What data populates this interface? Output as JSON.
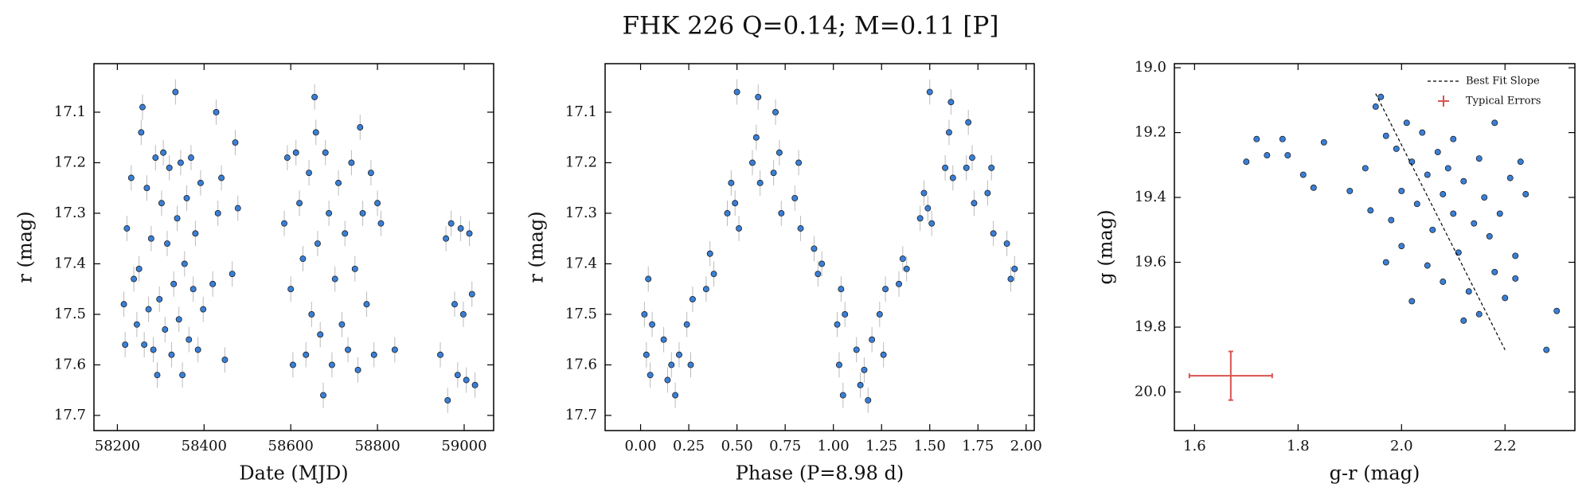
{
  "title": "FHK 226  Q=0.14; M=0.11 [P]",
  "chart_data": [
    {
      "type": "scatter",
      "xlabel": "Date (MJD)",
      "ylabel": "r (mag)",
      "color": "#3a7fd5",
      "yerr": 0.025,
      "xlim": [
        58146,
        59068
      ],
      "ylim": [
        17.73,
        17.004
      ],
      "xticks": [
        58200,
        58400,
        58600,
        58800,
        59000
      ],
      "yticks": [
        17.1,
        17.2,
        17.3,
        17.4,
        17.5,
        17.6,
        17.7
      ],
      "x": [
        58215,
        58218,
        58222,
        58232,
        58238,
        58245,
        58250,
        58255,
        58258,
        58262,
        58268,
        58272,
        58278,
        58283,
        58288,
        58292,
        58297,
        58302,
        58306,
        58310,
        58315,
        58320,
        58325,
        58330,
        58334,
        58338,
        58342,
        58346,
        58350,
        58355,
        58360,
        58365,
        58370,
        58375,
        58380,
        58386,
        58392,
        58398,
        58420,
        58428,
        58432,
        58440,
        58448,
        58465,
        58472,
        58478,
        58585,
        58592,
        58600,
        58605,
        58612,
        58620,
        58628,
        58635,
        58642,
        58648,
        58655,
        58658,
        58662,
        58668,
        58675,
        58680,
        58688,
        58695,
        58702,
        58710,
        58718,
        58725,
        58732,
        58740,
        58748,
        58755,
        58760,
        58766,
        58775,
        58785,
        58792,
        58800,
        58808,
        58840,
        58945,
        58958,
        58962,
        58970,
        58978,
        58985,
        58992,
        58998,
        59005,
        59012,
        59018,
        59025
      ],
      "values": [
        17.48,
        17.56,
        17.33,
        17.23,
        17.43,
        17.52,
        17.41,
        17.14,
        17.09,
        17.56,
        17.25,
        17.49,
        17.35,
        17.57,
        17.19,
        17.62,
        17.47,
        17.28,
        17.18,
        17.53,
        17.36,
        17.21,
        17.58,
        17.44,
        17.06,
        17.31,
        17.51,
        17.2,
        17.62,
        17.4,
        17.27,
        17.55,
        17.19,
        17.45,
        17.34,
        17.57,
        17.24,
        17.49,
        17.44,
        17.1,
        17.3,
        17.23,
        17.59,
        17.42,
        17.16,
        17.29,
        17.32,
        17.19,
        17.45,
        17.6,
        17.18,
        17.28,
        17.39,
        17.58,
        17.22,
        17.5,
        17.07,
        17.14,
        17.36,
        17.54,
        17.66,
        17.18,
        17.3,
        17.6,
        17.43,
        17.24,
        17.52,
        17.34,
        17.57,
        17.2,
        17.41,
        17.61,
        17.13,
        17.3,
        17.48,
        17.22,
        17.58,
        17.28,
        17.32,
        17.57,
        17.58,
        17.35,
        17.67,
        17.32,
        17.48,
        17.62,
        17.33,
        17.5,
        17.63,
        17.34,
        17.46,
        17.64
      ]
    },
    {
      "type": "scatter",
      "xlabel": "Phase (P=8.98 d)",
      "ylabel": "r (mag)",
      "color": "#3a7fd5",
      "yerr": 0.025,
      "xlim": [
        -0.184,
        2.042
      ],
      "ylim": [
        17.73,
        17.004
      ],
      "xticks": [
        {
          "value": 0,
          "label": "0.00"
        },
        0.25,
        {
          "value": 0.5,
          "label": "0.50"
        },
        0.75,
        {
          "value": 1,
          "label": "1.00"
        },
        1.25,
        {
          "value": 1.5,
          "label": "1.50"
        },
        1.75,
        {
          "value": 2,
          "label": "2.00"
        }
      ],
      "yticks": [
        17.1,
        17.2,
        17.3,
        17.4,
        17.5,
        17.6,
        17.7
      ],
      "x": [
        0.02,
        0.03,
        0.04,
        0.05,
        0.06,
        0.12,
        0.14,
        0.16,
        0.18,
        0.2,
        0.24,
        0.26,
        0.27,
        0.34,
        0.36,
        0.38,
        0.45,
        0.47,
        0.49,
        0.5,
        0.51,
        0.58,
        0.6,
        0.61,
        0.62,
        0.69,
        0.7,
        0.72,
        0.73,
        0.8,
        0.82,
        0.83,
        0.9,
        0.92,
        0.94,
        1.02,
        1.03,
        1.04,
        1.05,
        1.06,
        1.12,
        1.14,
        1.16,
        1.18,
        1.2,
        1.24,
        1.26,
        1.27,
        1.34,
        1.36,
        1.38,
        1.45,
        1.47,
        1.49,
        1.5,
        1.51,
        1.58,
        1.6,
        1.61,
        1.62,
        1.69,
        1.7,
        1.72,
        1.73,
        1.8,
        1.82,
        1.83,
        1.9,
        1.92,
        1.94
      ],
      "values": [
        17.5,
        17.58,
        17.43,
        17.62,
        17.52,
        17.55,
        17.63,
        17.6,
        17.66,
        17.58,
        17.52,
        17.6,
        17.47,
        17.45,
        17.38,
        17.42,
        17.3,
        17.24,
        17.28,
        17.06,
        17.33,
        17.2,
        17.15,
        17.07,
        17.24,
        17.22,
        17.1,
        17.18,
        17.3,
        17.27,
        17.2,
        17.33,
        17.37,
        17.42,
        17.4,
        17.52,
        17.6,
        17.45,
        17.66,
        17.5,
        17.57,
        17.64,
        17.61,
        17.67,
        17.55,
        17.5,
        17.58,
        17.45,
        17.44,
        17.39,
        17.41,
        17.31,
        17.26,
        17.29,
        17.06,
        17.32,
        17.21,
        17.14,
        17.08,
        17.23,
        17.21,
        17.12,
        17.19,
        17.28,
        17.26,
        17.21,
        17.34,
        17.36,
        17.43,
        17.41
      ]
    },
    {
      "type": "scatter",
      "xlabel": "g-r (mag)",
      "ylabel": "g (mag)",
      "color": "#3a7fd5",
      "legend": "upper right",
      "xlim": [
        1.561,
        2.335
      ],
      "ylim": [
        20.119,
        18.9875
      ],
      "xticks": [
        1.6,
        1.8,
        {
          "value": 2,
          "label": "2.0"
        },
        2.2
      ],
      "yticks": [
        {
          "value": 19,
          "label": "19.0"
        },
        19.2,
        19.4,
        19.6,
        19.8,
        {
          "value": 20,
          "label": "20.0"
        }
      ],
      "x": [
        1.7,
        1.72,
        1.74,
        1.77,
        1.78,
        1.81,
        1.83,
        1.85,
        1.9,
        1.93,
        1.94,
        1.95,
        1.96,
        1.97,
        1.98,
        1.99,
        2.0,
        2.0,
        2.01,
        2.02,
        2.03,
        2.04,
        2.05,
        2.05,
        2.06,
        2.07,
        2.08,
        2.08,
        2.09,
        2.1,
        2.1,
        2.11,
        2.12,
        2.13,
        2.14,
        2.15,
        2.15,
        2.16,
        2.17,
        2.18,
        2.18,
        2.19,
        2.2,
        2.21,
        2.22,
        2.23,
        2.24,
        2.22,
        2.28,
        2.3,
        2.12,
        2.02,
        1.97
      ],
      "values": [
        19.29,
        19.22,
        19.27,
        19.22,
        19.27,
        19.33,
        19.37,
        19.23,
        19.38,
        19.31,
        19.44,
        19.12,
        19.09,
        19.21,
        19.47,
        19.25,
        19.38,
        19.55,
        19.17,
        19.29,
        19.42,
        19.2,
        19.61,
        19.33,
        19.5,
        19.26,
        19.39,
        19.66,
        19.31,
        19.45,
        19.22,
        19.57,
        19.35,
        19.69,
        19.48,
        19.28,
        19.76,
        19.4,
        19.52,
        19.17,
        19.63,
        19.45,
        19.71,
        19.34,
        19.58,
        19.29,
        19.39,
        19.65,
        19.87,
        19.75,
        19.78,
        19.72,
        19.6
      ],
      "fit_line": {
        "name": "Best Fit Slope",
        "color": "#000000",
        "x": [
          1.95,
          2.2
        ],
        "y": [
          19.08,
          19.87
        ]
      },
      "typical_error": {
        "name": "Typical Errors",
        "color": "#d9534f",
        "x": 1.67,
        "y": 19.95,
        "xerr": 0.08,
        "yerr": 0.075
      }
    }
  ]
}
